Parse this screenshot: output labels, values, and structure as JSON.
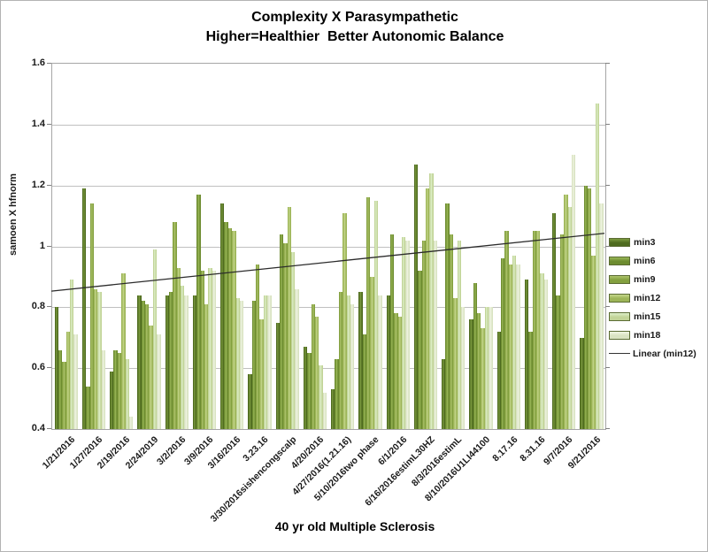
{
  "title": {
    "line1": "Complexity X Parasympathetic",
    "line2": "Higher=Healthier  Better Autonomic Balance"
  },
  "chart_data": {
    "type": "bar",
    "title": "Complexity X Parasympathetic / Higher=Healthier Better Autonomic Balance",
    "ylabel": "samoen X hfnorm",
    "xlabel": "40 yr old Multiple Sclerosis",
    "ylim": [
      0.4,
      1.6
    ],
    "yticks": [
      "0.4",
      "0.6",
      "0.8",
      "1",
      "1.2",
      "1.4",
      "1.6"
    ],
    "grid": true,
    "legend_position": "right",
    "categories": [
      "1/21/2016",
      "1/27/2016",
      "2/19/2016",
      "2/24/2019",
      "3/2/2016",
      "3/9/2016",
      "3/16/2016",
      "3.23.16",
      "3/30/2016sishencongscalp",
      "4/20/2016",
      "4/27/2016(1.21.16)",
      "5/10/2016two phase",
      "6/1/2016",
      "6/16/2016estimL30HZ",
      "8/3/2016estimL",
      "8/10/2016U1LI44100",
      "8.17.16",
      "8.31.16",
      "9/7/2016",
      "9/21/2016"
    ],
    "series": [
      {
        "name": "min3",
        "color": "#4e6b1f",
        "highlight": "#7d9c40",
        "values": [
          0.8,
          1.19,
          0.59,
          0.84,
          0.84,
          0.84,
          1.14,
          0.58,
          0.75,
          0.67,
          0.53,
          0.85,
          0.84,
          1.27,
          0.63,
          0.76,
          0.72,
          0.89,
          1.11,
          0.7
        ]
      },
      {
        "name": "min6",
        "color": "#6d8c30",
        "highlight": "#9ab858",
        "values": [
          0.66,
          0.54,
          0.66,
          0.82,
          0.85,
          1.17,
          1.08,
          0.82,
          1.04,
          0.65,
          0.63,
          0.71,
          1.04,
          0.92,
          1.14,
          0.88,
          0.96,
          0.72,
          0.84,
          1.2
        ]
      },
      {
        "name": "min9",
        "color": "#83a03f",
        "highlight": "#aec46c",
        "values": [
          0.62,
          1.14,
          0.65,
          0.81,
          1.08,
          0.92,
          1.06,
          0.94,
          1.01,
          0.81,
          0.85,
          1.16,
          0.78,
          1.02,
          1.04,
          0.78,
          1.05,
          1.05,
          1.04,
          1.19
        ]
      },
      {
        "name": "min12",
        "color": "#9db558",
        "highlight": "#c5d78c",
        "values": [
          0.72,
          0.86,
          0.91,
          0.74,
          0.93,
          0.81,
          1.05,
          0.76,
          1.13,
          0.77,
          1.11,
          0.9,
          0.77,
          1.19,
          0.83,
          0.73,
          0.94,
          1.05,
          1.17,
          0.97
        ]
      },
      {
        "name": "min15",
        "color": "#c2d498",
        "highlight": "#def0ca",
        "values": [
          0.89,
          0.85,
          0.63,
          0.99,
          0.87,
          0.93,
          0.83,
          0.84,
          0.98,
          0.61,
          0.84,
          1.15,
          1.03,
          1.24,
          1.02,
          0.8,
          0.97,
          0.91,
          1.13,
          1.47
        ]
      },
      {
        "name": "min18",
        "color": "#d9e3c2",
        "highlight": "#f0f5e3",
        "values": [
          0.71,
          0.66,
          0.44,
          0.71,
          0.84,
          0.92,
          0.82,
          0.84,
          0.86,
          0.52,
          0.81,
          0.84,
          1.02,
          1.02,
          0.8,
          0.8,
          0.94,
          0.89,
          1.3,
          1.14
        ]
      }
    ],
    "trendline": {
      "name": "Linear (min12)",
      "series_ref": "min12",
      "start_value": 0.85,
      "end_value": 1.04,
      "color": "#2b2b2b"
    }
  }
}
